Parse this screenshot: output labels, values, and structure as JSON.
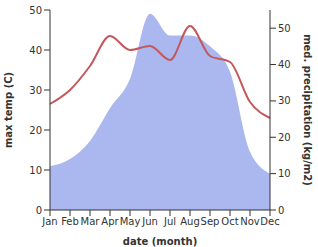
{
  "chart_data": {
    "type": "line",
    "x_label": "date (month)",
    "y_label": "max temp (C)",
    "y2_label": "med. precipitation (kg/m2)",
    "categories": [
      "Jan",
      "Feb",
      "Mar",
      "Apr",
      "May",
      "Jun",
      "Jul",
      "Aug",
      "Sep",
      "Oct",
      "Nov",
      "Dec"
    ],
    "ylim": [
      0,
      50
    ],
    "yticks": [
      0,
      10,
      20,
      30,
      40,
      50
    ],
    "y2lim": [
      0,
      55
    ],
    "y2ticks": [
      0,
      10,
      20,
      30,
      40,
      50
    ],
    "grid": false,
    "series": [
      {
        "name": "med. precipitation",
        "type": "area",
        "axis": "y2",
        "color": "#aab8ef",
        "values": [
          12,
          14,
          19,
          28,
          36,
          54,
          48,
          48,
          45,
          38,
          16,
          10
        ]
      },
      {
        "name": "max temp",
        "type": "line",
        "axis": "y",
        "color": "#c5575b",
        "values": [
          26.5,
          30,
          36,
          43.5,
          40,
          41,
          37.5,
          46,
          38.5,
          37,
          27,
          23
        ]
      }
    ]
  }
}
